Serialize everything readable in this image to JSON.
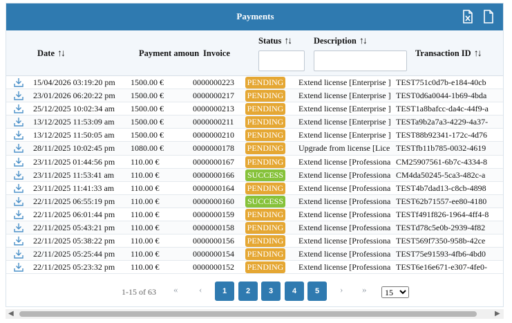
{
  "header": {
    "title": "Payments",
    "excel_icon": "excel-export-icon",
    "file_icon": "file-export-icon"
  },
  "columns": {
    "date": "Date",
    "amount": "Payment amoun",
    "invoice": "Invoice",
    "status": "Status",
    "description": "Description",
    "transaction": "Transaction ID",
    "sort_glyph": "↑↓"
  },
  "filters": {
    "status_value": "",
    "description_value": ""
  },
  "colors": {
    "header_bg": "#2f7ab0",
    "pending": "#e5a733",
    "success": "#86c23a"
  },
  "rows": [
    {
      "date": "15/04/2026 03:19:20 pm",
      "amount": "1500.00 €",
      "invoice": "0000000223",
      "status": "PENDING",
      "description": "Extend license [Enterprise ]",
      "transaction": "TEST751c0d7b-e184-40cb"
    },
    {
      "date": "23/01/2026 06:20:22 pm",
      "amount": "1500.00 €",
      "invoice": "0000000217",
      "status": "PENDING",
      "description": "Extend license [Enterprise ]",
      "transaction": "TEST0d6a0044-1b69-4bda"
    },
    {
      "date": "25/12/2025 10:02:34 am",
      "amount": "1500.00 €",
      "invoice": "0000000213",
      "status": "PENDING",
      "description": "Extend license [Enterprise ]",
      "transaction": "TEST1a8bafcc-da4c-44f9-a"
    },
    {
      "date": "13/12/2025 11:53:09 am",
      "amount": "1500.00 €",
      "invoice": "0000000211",
      "status": "PENDING",
      "description": "Extend license [Enterprise ]",
      "transaction": "TESTa9b2a7a3-4229-4a37-"
    },
    {
      "date": "13/12/2025 11:50:05 am",
      "amount": "1500.00 €",
      "invoice": "0000000210",
      "status": "PENDING",
      "description": "Extend license [Enterprise ]",
      "transaction": "TEST88b92341-172c-4d76"
    },
    {
      "date": "28/11/2025 10:02:45 pm",
      "amount": "1080.00 €",
      "invoice": "0000000178",
      "status": "PENDING",
      "description": "Upgrade from license [Lice",
      "transaction": "TESTfb11b785-0032-4619"
    },
    {
      "date": "23/11/2025 01:44:56 pm",
      "amount": "110.00 €",
      "invoice": "0000000167",
      "status": "PENDING",
      "description": "Extend license [Professiona",
      "transaction": "CM25907561-6b7c-4334-8"
    },
    {
      "date": "23/11/2025 11:53:41 am",
      "amount": "110.00 €",
      "invoice": "0000000166",
      "status": "SUCCESS",
      "description": "Extend license [Professiona",
      "transaction": "CM4da50245-5ca3-482c-a"
    },
    {
      "date": "23/11/2025 11:41:33 am",
      "amount": "110.00 €",
      "invoice": "0000000164",
      "status": "PENDING",
      "description": "Extend license [Professiona",
      "transaction": "TEST4b7dad13-c8cb-4898"
    },
    {
      "date": "22/11/2025 06:55:19 pm",
      "amount": "110.00 €",
      "invoice": "0000000160",
      "status": "SUCCESS",
      "description": "Extend license [Professiona",
      "transaction": "TEST62b71557-ee80-4180"
    },
    {
      "date": "22/11/2025 06:01:44 pm",
      "amount": "110.00 €",
      "invoice": "0000000159",
      "status": "PENDING",
      "description": "Extend license [Professiona",
      "transaction": "TESTf491f826-1964-4ff4-8"
    },
    {
      "date": "22/11/2025 05:43:21 pm",
      "amount": "110.00 €",
      "invoice": "0000000158",
      "status": "PENDING",
      "description": "Extend license [Professiona",
      "transaction": "TESTd78c5e0b-2939-4f82"
    },
    {
      "date": "22/11/2025 05:38:22 pm",
      "amount": "110.00 €",
      "invoice": "0000000156",
      "status": "PENDING",
      "description": "Extend license [Professiona",
      "transaction": "TEST569f7350-958b-42ce"
    },
    {
      "date": "22/11/2025 05:25:44 pm",
      "amount": "110.00 €",
      "invoice": "0000000154",
      "status": "PENDING",
      "description": "Extend license [Professiona",
      "transaction": "TEST75e91593-4fb6-4bd0"
    },
    {
      "date": "22/11/2025 05:23:32 pm",
      "amount": "110.00 €",
      "invoice": "0000000152",
      "status": "PENDING",
      "description": "Extend license [Professiona",
      "transaction": "TEST6e16e671-e307-4fe0-"
    }
  ],
  "pagination": {
    "info": "1-15 of 63",
    "first": "«",
    "prev": "‹",
    "next": "›",
    "last": "»",
    "pages": [
      "1",
      "2",
      "3",
      "4",
      "5"
    ],
    "page_size": "15"
  },
  "scrollbar": {
    "left": "◀",
    "right": "▶"
  }
}
